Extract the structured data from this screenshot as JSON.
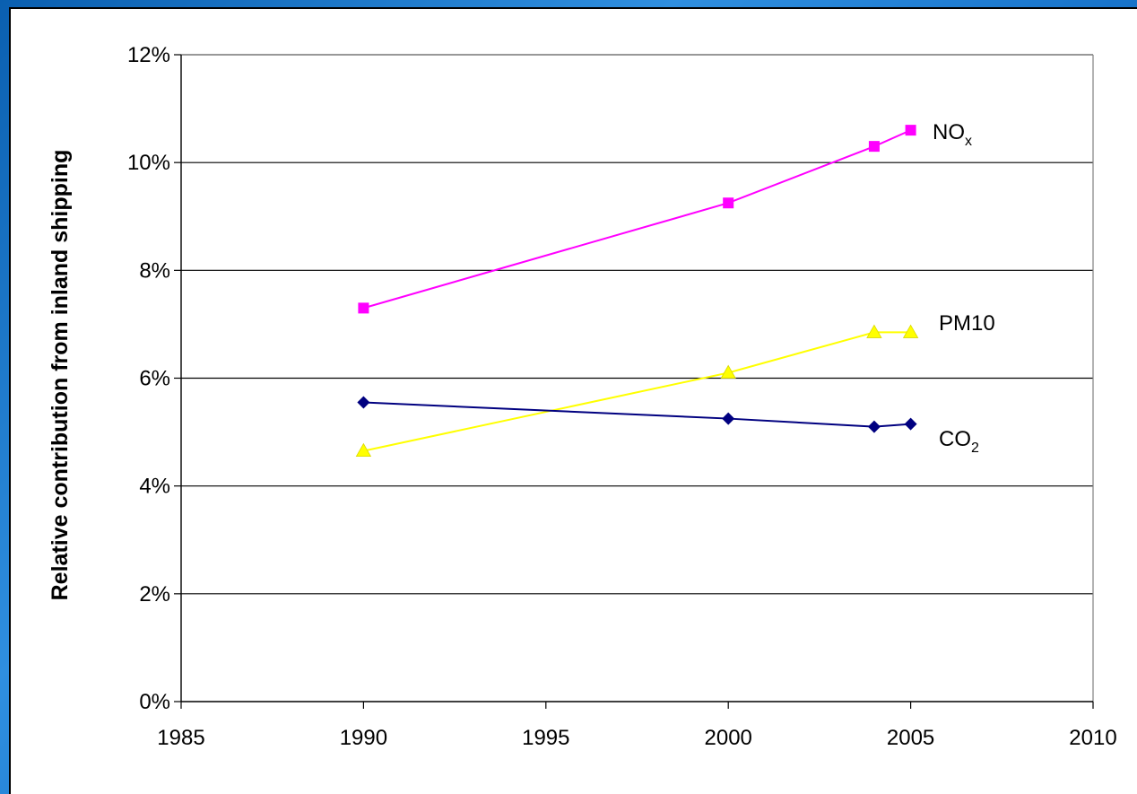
{
  "chart_data": {
    "type": "line",
    "title": "",
    "xlabel": "",
    "ylabel": "Relative contribution from inland shipping",
    "xlim": [
      1985,
      2010
    ],
    "ylim": [
      0,
      12
    ],
    "x_ticks": [
      "1985",
      "1990",
      "1995",
      "2000",
      "2005",
      "2010"
    ],
    "y_ticks": [
      "0%",
      "2%",
      "4%",
      "6%",
      "8%",
      "10%",
      "12%"
    ],
    "grid": "horizontal major gridlines",
    "legend": "inline labels at right end of each series",
    "series": [
      {
        "name": "NOx",
        "label_main": "NO",
        "label_sub": "x",
        "color": "#ff00ff",
        "marker": "square",
        "x": [
          1990,
          2000,
          2004,
          2005
        ],
        "y": [
          7.3,
          9.25,
          10.3,
          10.6
        ]
      },
      {
        "name": "PM10",
        "label_main": "PM10",
        "label_sub": "",
        "color": "#ffff00",
        "marker": "triangle",
        "x": [
          1990,
          2000,
          2004,
          2005
        ],
        "y": [
          4.65,
          6.1,
          6.85,
          6.85
        ]
      },
      {
        "name": "CO2",
        "label_main": "CO",
        "label_sub": "2",
        "color": "#000080",
        "marker": "diamond",
        "x": [
          1990,
          2000,
          2004,
          2005
        ],
        "y": [
          5.55,
          5.25,
          5.1,
          5.15
        ]
      }
    ]
  }
}
